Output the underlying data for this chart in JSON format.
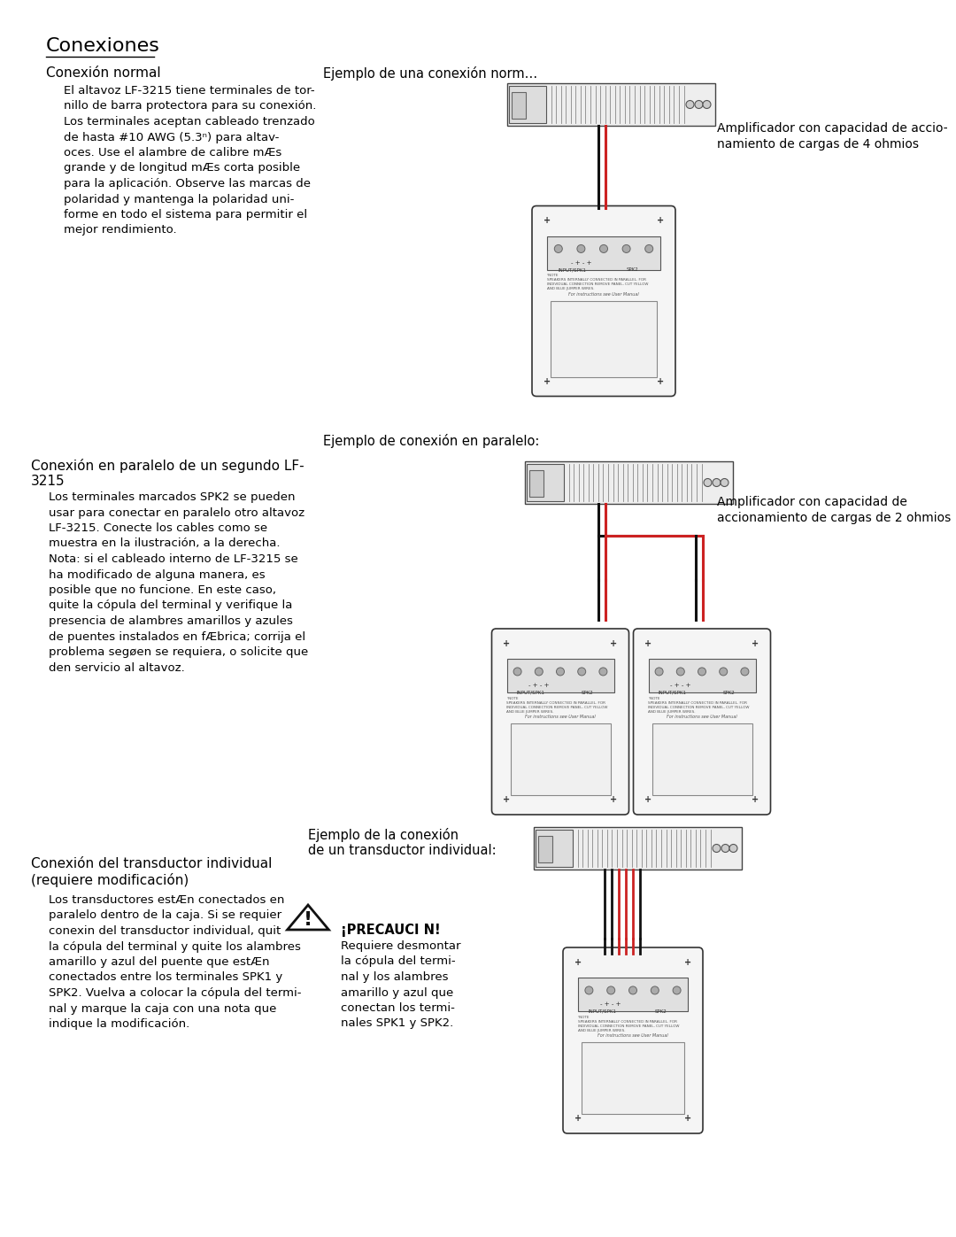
{
  "title": "Conexiones",
  "bg_color": "#ffffff",
  "section1": {
    "heading": "Conexión normal",
    "body": "El altavoz LF-3215 tiene terminales de tor-\nnillo de barra protectora para su conexión.\nLos terminales aceptan cableado trenzado\nde hasta #10 AWG (5.3ⁿ) para altav-\noces. Use el alambre de calibre mÆs\ngrande y de longitud mÆs corta posible\npara la aplicación. Observe las marcas de\npolaridad y mantenga la polaridad uni-\nforme en todo el sistema para permitir el\nmejor rendimiento.",
    "example_title": "Ejemplo de una conexión norm…",
    "amp_label": "Amplificador con capacidad de accio-\nnamiento de cargas de 4 ohmios"
  },
  "section2": {
    "heading": "Conexión en paralelo de un segundo LF-\n3215",
    "body": "Los terminales marcados SPK2 se pueden\nusar para conectar en paralelo otro altavoz\nLF-3215. Conecte los cables como se\nmuestra en la ilustración, a la derecha.\nNota: si el cableado interno de LF-3215 se\nha modificado de alguna manera, es\nposible que no funcione. En este caso,\nquite la cópula del terminal y verifique la\npresencia de alambres amarillos y azules\nde puentes instalados en fÆbrica; corrija el\nproblema segøen se requiera, o solicite que\nden servicio al altavoz.",
    "example_title": "Ejemplo de conexión en paralelo:",
    "amp_label": "Amplificador con capacidad de\naccionamiento de cargas de 2 ohmios"
  },
  "section3": {
    "heading": "Conexión del transductor individual\n(requiere modificación)",
    "body": "Los transductores estÆn conectados en\nparalelo dentro de la caja. Si se requier\nconexin del transductor individual, quit\nla cópula del terminal y quite los alambres\namarillo y azul del puente que estÆn\nconectados entre los terminales SPK1 y\nSPK2. Vuelva a colocar la cópula del termi-\nnal y marque la caja con una nota que\nindique la modificación.",
    "example_title": "Ejemplo de la conexión\nde un transductor individual:",
    "caution_title": "¡PRECAUCI N!",
    "caution_body": "Requiere desmontar\nla cópula del termi-\nnal y los alambres\namarillo y azul que\nconectan los termi-\nnales SPK1 y SPK2."
  }
}
